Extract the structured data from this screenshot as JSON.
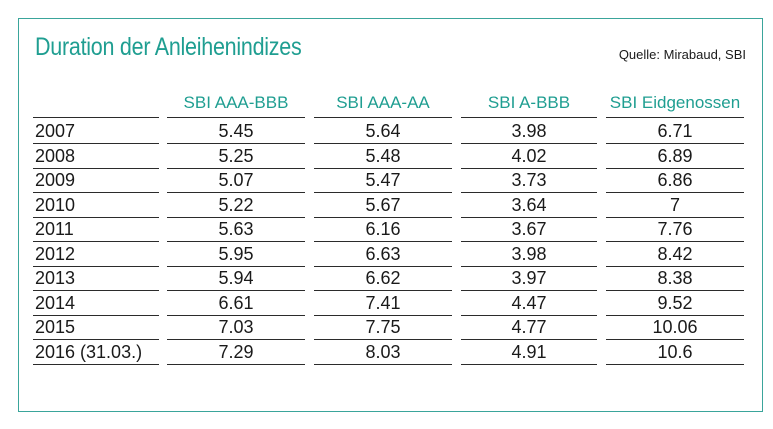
{
  "title": "Duration der Anleihenindizes",
  "source": "Quelle: Mirabaud, SBI",
  "chart_data": {
    "type": "table",
    "columns": [
      "",
      "SBI AAA-BBB",
      "SBI AAA-AA",
      "SBI A-BBB",
      "SBI Eidgenossen"
    ],
    "rows": [
      {
        "label": "2007",
        "values": [
          "5.45",
          "5.64",
          "3.98",
          "6.71"
        ]
      },
      {
        "label": "2008",
        "values": [
          "5.25",
          "5.48",
          "4.02",
          "6.89"
        ]
      },
      {
        "label": "2009",
        "values": [
          "5.07",
          "5.47",
          "3.73",
          "6.86"
        ]
      },
      {
        "label": "2010",
        "values": [
          "5.22",
          "5.67",
          "3.64",
          "7"
        ]
      },
      {
        "label": "2011",
        "values": [
          "5.63",
          "6.16",
          "3.67",
          "7.76"
        ]
      },
      {
        "label": "2012",
        "values": [
          "5.95",
          "6.63",
          "3.98",
          "8.42"
        ]
      },
      {
        "label": "2013",
        "values": [
          "5.94",
          "6.62",
          "3.97",
          "8.38"
        ]
      },
      {
        "label": "2014",
        "values": [
          "6.61",
          "7.41",
          "4.47",
          "9.52"
        ]
      },
      {
        "label": "2015",
        "values": [
          "7.03",
          "7.75",
          "4.77",
          "10.06"
        ]
      },
      {
        "label": "2016 (31.03.)",
        "values": [
          "7.29",
          "8.03",
          "4.91",
          "10.6"
        ]
      }
    ]
  },
  "colors": {
    "accent": "#1f9e91",
    "border": "#3aa59b",
    "text": "#1a1a1a",
    "rule": "#2b2b2b"
  }
}
